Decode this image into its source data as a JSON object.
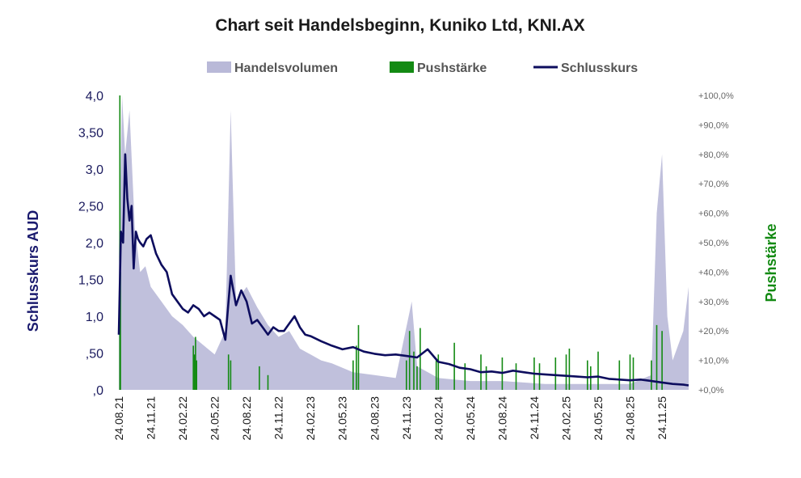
{
  "chart_data": {
    "type": "line",
    "title": "Chart seit Handelsbeginn, Kuniko Ltd, KNI.AX",
    "ylabel": "Schlusskurs AUD",
    "y2label": "Pushstärke",
    "ylim": [
      0,
      4.0
    ],
    "y2lim": [
      0,
      100
    ],
    "y_ticks": [
      ",0",
      ",50",
      "1,0",
      "1,50",
      "2,0",
      "2,50",
      "3,0",
      "3,50",
      "4,0"
    ],
    "y2_ticks": [
      "+0,0%",
      "+10,0%",
      "+20,0%",
      "+30,0%",
      "+40,0%",
      "+50,0%",
      "+60,0%",
      "+70,0%",
      "+80,0%",
      "+90,0%",
      "+100,0%"
    ],
    "x_ticks": [
      "24.08.21",
      "24.11.21",
      "24.02.22",
      "24.05.22",
      "24.08.22",
      "24.11.22",
      "24.02.23",
      "24.05.23",
      "24.08.23",
      "24.11.23",
      "24.02.24",
      "24.05.24",
      "24.08.24",
      "24.11.24",
      "24.02.25",
      "24.05.25",
      "24.08.25",
      "24.11.25"
    ],
    "legend": {
      "placement": "top-center",
      "entries": [
        {
          "label": "Handelsvolumen",
          "color": "#b9b9d8"
        },
        {
          "label": "Pushstärke",
          "color": "#138a13"
        },
        {
          "label": "Schlusskurs",
          "color": "#0d0d5e"
        }
      ]
    },
    "series": [
      {
        "name": "Schlusskurs",
        "axis": "left",
        "color": "#0d0d5e",
        "x": [
          0,
          0.2,
          0.4,
          0.6,
          0.8,
          1.0,
          1.2,
          1.4,
          1.6,
          1.8,
          2.0,
          2.3,
          2.6,
          3.0,
          3.5,
          4.0,
          4.5,
          5.0,
          5.5,
          6.0,
          6.5,
          7.0,
          7.5,
          8.0,
          8.5,
          9.0,
          9.5,
          10.0,
          10.5,
          11.0,
          11.5,
          12.0,
          12.5,
          13.0,
          13.5,
          14.0,
          14.5,
          15.0,
          15.5,
          16.0,
          16.5,
          17.0,
          17.5,
          18.0,
          19.0,
          20.0,
          21.0,
          22.0,
          22.5,
          23.0,
          24.0,
          25.0,
          26.0,
          27.0,
          28.0,
          29.0,
          30.0,
          31.0,
          32.0,
          33.0,
          34.0,
          35.0,
          36.0,
          37.0,
          38.0,
          39.0,
          40.0,
          41.0,
          42.0,
          43.0,
          44.0,
          45.0,
          46.0,
          47.0,
          48.0,
          49.0,
          50.0,
          51.0,
          52.0,
          53.0,
          53.5
        ],
        "values": [
          0.75,
          2.15,
          2.0,
          3.2,
          2.6,
          2.3,
          2.5,
          1.65,
          2.15,
          2.05,
          2.0,
          1.95,
          2.05,
          2.1,
          1.85,
          1.7,
          1.6,
          1.3,
          1.2,
          1.1,
          1.05,
          1.15,
          1.1,
          1.0,
          1.05,
          1.0,
          0.95,
          0.68,
          1.55,
          1.15,
          1.35,
          1.2,
          0.9,
          0.95,
          0.85,
          0.75,
          0.85,
          0.8,
          0.8,
          0.9,
          1.0,
          0.85,
          0.75,
          0.73,
          0.66,
          0.6,
          0.55,
          0.58,
          0.55,
          0.52,
          0.49,
          0.47,
          0.48,
          0.46,
          0.44,
          0.55,
          0.38,
          0.35,
          0.3,
          0.28,
          0.24,
          0.25,
          0.23,
          0.26,
          0.24,
          0.22,
          0.21,
          0.2,
          0.19,
          0.18,
          0.17,
          0.18,
          0.15,
          0.14,
          0.13,
          0.14,
          0.12,
          0.1,
          0.08,
          0.07,
          0.06
        ]
      },
      {
        "name": "Handelsvolumen",
        "axis": "right",
        "color": "#b9b9d8",
        "x": [
          0,
          0.3,
          0.6,
          1.0,
          1.5,
          2.0,
          2.5,
          3.0,
          4.0,
          5.0,
          6.0,
          7.0,
          8.0,
          9.0,
          10.0,
          10.5,
          11.0,
          12.0,
          13.0,
          14.0,
          15.0,
          16.0,
          17.0,
          18.0,
          19.0,
          20.0,
          22.0,
          24.0,
          26.0,
          27.5,
          28.0,
          30.0,
          33.0,
          36.0,
          40.0,
          44.0,
          48.0,
          50.0,
          50.5,
          51.0,
          51.5,
          52.0,
          52.5,
          53.0,
          53.5
        ],
        "values": [
          45,
          100,
          80,
          95,
          55,
          40,
          42,
          35,
          30,
          25,
          22,
          18,
          15,
          12,
          20,
          95,
          30,
          35,
          28,
          22,
          18,
          20,
          14,
          12,
          10,
          9,
          6,
          5,
          4,
          30,
          8,
          4,
          3,
          3,
          2,
          2,
          2,
          5,
          60,
          80,
          25,
          10,
          15,
          20,
          35
        ]
      }
    ],
    "bars": {
      "name": "Pushstärke",
      "axis": "right",
      "color": "#138a13",
      "x": [
        0.1,
        0.15,
        7.0,
        7.1,
        7.2,
        7.3,
        10.3,
        10.5,
        13.2,
        14.0,
        22.0,
        22.3,
        22.5,
        27.0,
        27.3,
        27.7,
        28.0,
        28.3,
        29.8,
        30.0,
        31.5,
        32.5,
        34.0,
        34.5,
        36.0,
        37.3,
        39.0,
        39.5,
        41.0,
        42.0,
        42.3,
        44.0,
        44.3,
        45.0,
        47.0,
        48.0,
        48.3,
        50.0,
        50.5,
        51.0
      ],
      "values": [
        100,
        40,
        15,
        12,
        18,
        10,
        12,
        10,
        8,
        5,
        10,
        15,
        22,
        10,
        20,
        13,
        8,
        21,
        10,
        12,
        16,
        9,
        12,
        8,
        11,
        9,
        11,
        9,
        11,
        12,
        14,
        10,
        8,
        13,
        10,
        12,
        11,
        10,
        22,
        20
      ]
    }
  }
}
